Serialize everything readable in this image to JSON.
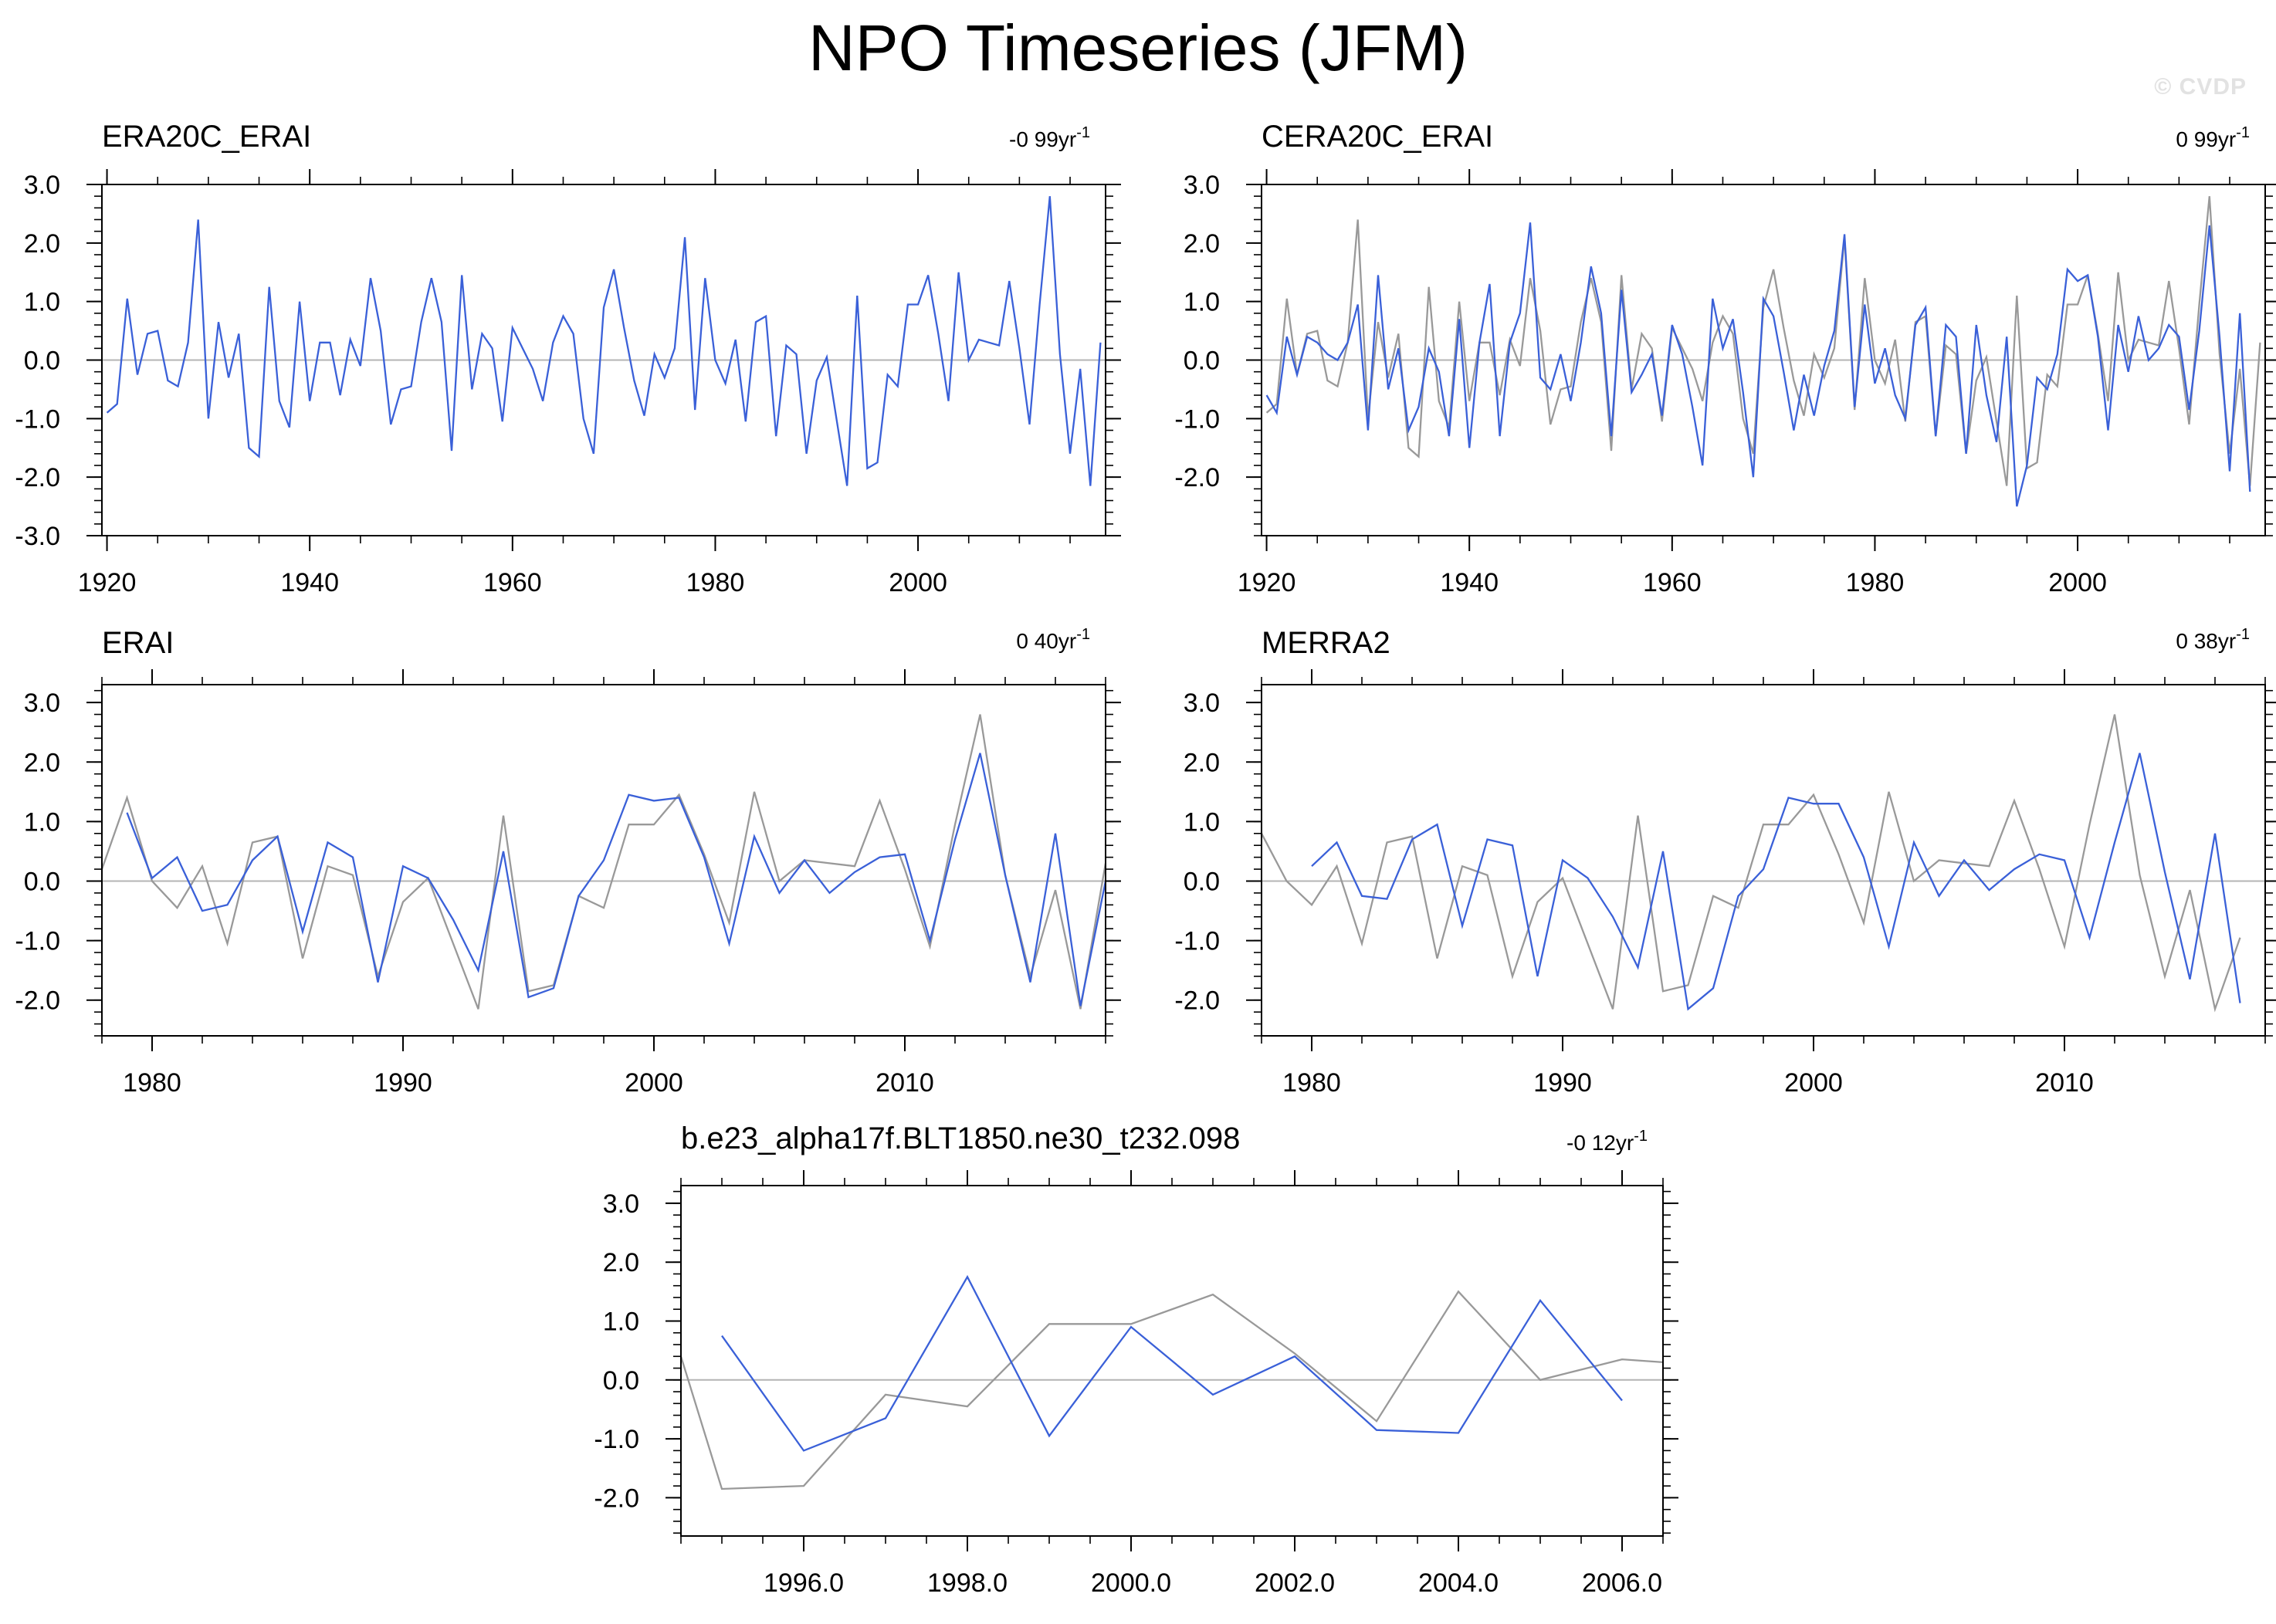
{
  "page": {
    "title": "NPO Timeseries (JFM)",
    "watermark": "© CVDP"
  },
  "chart_data": [
    {
      "type": "line",
      "title": "ERA20C_ERAI",
      "trend": "-0 99yr",
      "trend_sup": "-1",
      "xlabel": "",
      "ylabel": "",
      "xlim": [
        1919.5,
        2018.5
      ],
      "ylim": [
        -3.0,
        3.0
      ],
      "xticks": [
        1920,
        1940,
        1960,
        1980,
        2000
      ],
      "xtick_labels": [
        "1920",
        "1940",
        "1960",
        "1980",
        "2000"
      ],
      "yticks": [
        3.0,
        2.0,
        1.0,
        0.0,
        -1.0,
        -2.0,
        -3.0
      ],
      "ytick_labels": [
        "3.0",
        "2.0",
        "1.0",
        "0.0",
        "-1.0",
        "-2.0",
        "-3.0"
      ],
      "series": [
        {
          "color": "#3a60d8",
          "x_start": 1920,
          "values": [
            -0.9,
            -0.75,
            1.05,
            -0.25,
            0.45,
            0.5,
            -0.35,
            -0.45,
            0.3,
            2.4,
            -1.0,
            0.65,
            -0.3,
            0.45,
            -1.5,
            -1.65,
            1.25,
            -0.7,
            -1.15,
            1.0,
            -0.7,
            0.3,
            0.3,
            -0.6,
            0.35,
            -0.1,
            1.4,
            0.5,
            -1.1,
            -0.5,
            -0.45,
            0.65,
            1.4,
            0.65,
            -1.55,
            1.45,
            -0.5,
            0.45,
            0.2,
            -1.05,
            0.55,
            0.2,
            -0.15,
            -0.7,
            0.3,
            0.75,
            0.45,
            -1.0,
            -1.6,
            0.9,
            1.55,
            0.55,
            -0.35,
            -0.95,
            0.1,
            -0.3,
            0.2,
            2.1,
            -0.85,
            1.4,
            0.0,
            -0.4,
            0.35,
            -1.05,
            0.65,
            0.75,
            -1.3,
            0.25,
            0.1,
            -1.6,
            -0.35,
            0.05,
            -1.05,
            -2.15,
            1.1,
            -1.85,
            -1.75,
            -0.25,
            -0.45,
            0.95,
            0.95,
            1.45,
            0.45,
            -0.7,
            1.5,
            0.0,
            0.35,
            0.3,
            0.25,
            1.35,
            0.2,
            -1.1,
            0.95,
            2.8,
            0.1,
            -1.6,
            -0.15,
            -2.15,
            0.3
          ]
        }
      ]
    },
    {
      "type": "line",
      "title": "CERA20C_ERAI",
      "trend": "0 99yr",
      "trend_sup": "-1",
      "xlabel": "",
      "ylabel": "",
      "xlim": [
        1919.5,
        2018.5
      ],
      "ylim": [
        -3.0,
        3.0
      ],
      "xticks": [
        1920,
        1940,
        1960,
        1980,
        2000
      ],
      "xtick_labels": [
        "1920",
        "1940",
        "1960",
        "1980",
        "2000"
      ],
      "yticks": [
        3.0,
        2.0,
        1.0,
        0.0,
        -1.0,
        -2.0
      ],
      "ytick_labels": [
        "3.0",
        "2.0",
        "1.0",
        "0.0",
        "-1.0",
        "-2.0"
      ],
      "series": [
        {
          "color": "#999999",
          "x_start": 1920,
          "values": [
            -0.9,
            -0.75,
            1.05,
            -0.25,
            0.45,
            0.5,
            -0.35,
            -0.45,
            0.3,
            2.4,
            -1.0,
            0.65,
            -0.3,
            0.45,
            -1.5,
            -1.65,
            1.25,
            -0.7,
            -1.15,
            1.0,
            -0.7,
            0.3,
            0.3,
            -0.6,
            0.35,
            -0.1,
            1.4,
            0.5,
            -1.1,
            -0.5,
            -0.45,
            0.65,
            1.4,
            0.65,
            -1.55,
            1.45,
            -0.5,
            0.45,
            0.2,
            -1.05,
            0.55,
            0.2,
            -0.15,
            -0.7,
            0.3,
            0.75,
            0.45,
            -1.0,
            -1.6,
            0.9,
            1.55,
            0.55,
            -0.35,
            -0.95,
            0.1,
            -0.3,
            0.2,
            2.1,
            -0.85,
            1.4,
            0.0,
            -0.4,
            0.35,
            -1.05,
            0.65,
            0.75,
            -1.3,
            0.25,
            0.1,
            -1.6,
            -0.35,
            0.05,
            -1.05,
            -2.15,
            1.1,
            -1.85,
            -1.75,
            -0.25,
            -0.45,
            0.95,
            0.95,
            1.45,
            0.45,
            -0.7,
            1.5,
            0.0,
            0.35,
            0.3,
            0.25,
            1.35,
            0.2,
            -1.1,
            0.95,
            2.8,
            0.1,
            -1.6,
            -0.15,
            -2.15,
            0.3
          ]
        },
        {
          "color": "#3a60d8",
          "x_start": 1920,
          "values": [
            -0.6,
            -0.9,
            0.4,
            -0.25,
            0.4,
            0.3,
            0.1,
            0.0,
            0.3,
            0.95,
            -1.2,
            1.45,
            -0.5,
            0.2,
            -1.2,
            -0.8,
            0.2,
            -0.2,
            -1.3,
            0.7,
            -1.5,
            0.3,
            1.3,
            -1.3,
            0.3,
            0.8,
            2.35,
            -0.3,
            -0.5,
            0.1,
            -0.7,
            0.3,
            1.6,
            0.8,
            -1.3,
            1.2,
            -0.55,
            -0.25,
            0.1,
            -0.95,
            0.6,
            0.1,
            -0.8,
            -1.8,
            1.05,
            0.2,
            0.7,
            -0.55,
            -2.0,
            1.05,
            0.75,
            -0.2,
            -1.2,
            -0.25,
            -0.95,
            -0.1,
            0.5,
            2.15,
            -0.8,
            0.95,
            -0.4,
            0.2,
            -0.6,
            -1.0,
            0.6,
            0.9,
            -1.3,
            0.6,
            0.4,
            -1.6,
            0.6,
            -0.6,
            -1.4,
            0.4,
            -2.5,
            -1.8,
            -0.3,
            -0.5,
            0.1,
            1.55,
            1.35,
            1.45,
            0.4,
            -1.2,
            0.6,
            -0.2,
            0.75,
            0.0,
            0.2,
            0.6,
            0.4,
            -0.85,
            0.5,
            2.3,
            0.4,
            -1.9,
            0.8,
            -2.25
          ]
        }
      ]
    },
    {
      "type": "line",
      "title": "ERAI",
      "trend": "0 40yr",
      "trend_sup": "-1",
      "xlabel": "",
      "ylabel": "",
      "xlim": [
        1978.0,
        2018.0
      ],
      "ylim": [
        -2.6,
        3.3
      ],
      "xticks": [
        1980,
        1990,
        2000,
        2010
      ],
      "xtick_labels": [
        "1980",
        "1990",
        "2000",
        "2010"
      ],
      "yticks": [
        3.0,
        2.0,
        1.0,
        0.0,
        -1.0,
        -2.0
      ],
      "ytick_labels": [
        "3.0",
        "2.0",
        "1.0",
        "0.0",
        "-1.0",
        "-2.0"
      ],
      "series": [
        {
          "color": "#999999",
          "x_start": 1978,
          "values": [
            0.2,
            1.4,
            0.0,
            -0.45,
            0.25,
            -1.05,
            0.65,
            0.75,
            -1.3,
            0.25,
            0.1,
            -1.6,
            -0.35,
            0.05,
            -1.05,
            -2.15,
            1.1,
            -1.85,
            -1.75,
            -0.25,
            -0.45,
            0.95,
            0.95,
            1.45,
            0.45,
            -0.7,
            1.5,
            0.0,
            0.35,
            0.3,
            0.25,
            1.35,
            0.2,
            -1.1,
            0.95,
            2.8,
            0.1,
            -1.6,
            -0.15,
            -2.15,
            0.3
          ]
        },
        {
          "color": "#3a60d8",
          "x_start": 1979,
          "values": [
            1.15,
            0.05,
            0.4,
            -0.5,
            -0.4,
            0.35,
            0.75,
            -0.85,
            0.65,
            0.4,
            -1.7,
            0.25,
            0.05,
            -0.65,
            -1.5,
            0.5,
            -1.95,
            -1.8,
            -0.25,
            0.35,
            1.45,
            1.35,
            1.4,
            0.4,
            -1.05,
            0.75,
            -0.2,
            0.35,
            -0.2,
            0.15,
            0.4,
            0.45,
            -1.0,
            0.7,
            2.15,
            0.1,
            -1.7,
            0.8,
            -2.1,
            0.0
          ]
        }
      ]
    },
    {
      "type": "line",
      "title": "MERRA2",
      "trend": "0 38yr",
      "trend_sup": "-1",
      "xlabel": "",
      "ylabel": "",
      "xlim": [
        1978.0,
        2018.0
      ],
      "ylim": [
        -2.6,
        3.3
      ],
      "xticks": [
        1980,
        1990,
        2000,
        2010
      ],
      "xtick_labels": [
        "1980",
        "1990",
        "2000",
        "2010"
      ],
      "yticks": [
        3.0,
        2.0,
        1.0,
        0.0,
        -1.0,
        -2.0
      ],
      "ytick_labels": [
        "3.0",
        "2.0",
        "1.0",
        "0.0",
        "-1.0",
        "-2.0"
      ],
      "series": [
        {
          "color": "#999999",
          "x_start": 1978,
          "values": [
            0.8,
            0.0,
            -0.4,
            0.25,
            -1.05,
            0.65,
            0.75,
            -1.3,
            0.25,
            0.1,
            -1.6,
            -0.35,
            0.05,
            -1.05,
            -2.15,
            1.1,
            -1.85,
            -1.75,
            -0.25,
            -0.45,
            0.95,
            0.95,
            1.45,
            0.45,
            -0.7,
            1.5,
            0.0,
            0.35,
            0.3,
            0.25,
            1.35,
            0.2,
            -1.1,
            0.95,
            2.8,
            0.1,
            -1.6,
            -0.15,
            -2.15,
            -0.95
          ]
        },
        {
          "color": "#3a60d8",
          "x_start": 1980,
          "values": [
            0.25,
            0.65,
            -0.25,
            -0.3,
            0.7,
            0.95,
            -0.75,
            0.7,
            0.6,
            -1.6,
            0.35,
            0.05,
            -0.6,
            -1.45,
            0.5,
            -2.15,
            -1.8,
            -0.25,
            0.2,
            1.4,
            1.3,
            1.3,
            0.4,
            -1.1,
            0.65,
            -0.25,
            0.35,
            -0.15,
            0.2,
            0.45,
            0.35,
            -0.95,
            0.65,
            2.15,
            0.15,
            -1.65,
            0.8,
            -2.05
          ]
        }
      ]
    },
    {
      "type": "line",
      "title": "b.e23_alpha17f.BLT1850.ne30_t232.098",
      "trend": "-0 12yr",
      "trend_sup": "-1",
      "xlabel": "",
      "ylabel": "",
      "xlim": [
        1994.5,
        2006.5
      ],
      "ylim": [
        -2.65,
        3.3
      ],
      "xticks": [
        1996,
        1998,
        2000,
        2002,
        2004,
        2006
      ],
      "xtick_labels": [
        "1996.0",
        "1998.0",
        "2000.0",
        "2002.0",
        "2004.0",
        "2006.0"
      ],
      "yticks": [
        3.0,
        2.0,
        1.0,
        0.0,
        -1.0,
        -2.0
      ],
      "ytick_labels": [
        "3.0",
        "2.0",
        "1.0",
        "0.0",
        "-1.0",
        "-2.0"
      ],
      "series": [
        {
          "color": "#999999",
          "x_start": 1994,
          "values": [
            0.4,
            -1.85,
            -1.8,
            -0.25,
            -0.45,
            0.95,
            0.95,
            1.45,
            0.45,
            -0.7,
            1.5,
            0.0,
            0.35,
            0.3
          ]
        },
        {
          "color": "#3a60d8",
          "x_start": 1995,
          "values": [
            0.75,
            -1.2,
            -0.65,
            1.75,
            -0.95,
            0.9,
            -0.25,
            0.4,
            -0.85,
            -0.9,
            1.35,
            -0.35
          ]
        }
      ]
    }
  ]
}
